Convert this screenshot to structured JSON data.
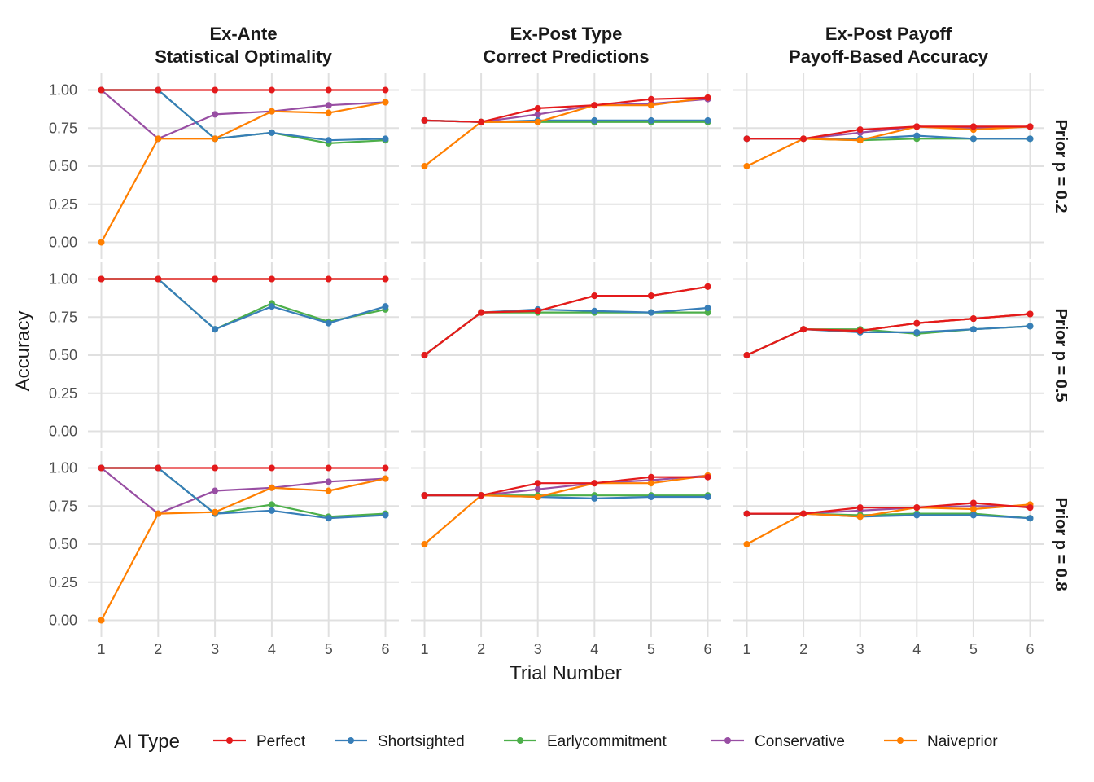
{
  "chart_data": {
    "type": "line",
    "xlabel": "Trial Number",
    "ylabel": "Accuracy",
    "x": [
      1,
      2,
      3,
      4,
      5,
      6
    ],
    "x_ticks": [
      "1",
      "2",
      "3",
      "4",
      "5",
      "6"
    ],
    "y_ticks": [
      "0.00",
      "0.25",
      "0.50",
      "0.75",
      "1.00"
    ],
    "ylim": [
      0,
      1
    ],
    "grid": true,
    "legend": {
      "title": "AI Type",
      "position": "bottom",
      "entries": [
        "Perfect",
        "Shortsighted",
        "Earlycommitment",
        "Conservative",
        "Naiveprior"
      ]
    },
    "colors": {
      "Perfect": "#e41a1c",
      "Shortsighted": "#377eb8",
      "Earlycommitment": "#4daf4a",
      "Conservative": "#984ea3",
      "Naiveprior": "#ff7f00"
    },
    "columns": [
      [
        "Ex-Ante",
        "Statistical Optimality"
      ],
      [
        "Ex-Post Type",
        "Correct Predictions"
      ],
      [
        "Ex-Post Payoff",
        "Payoff-Based Accuracy"
      ]
    ],
    "rows": [
      "Prior p = 0.2",
      "Prior p = 0.5",
      "Prior p = 0.8"
    ],
    "panels": [
      [
        {
          "Perfect": [
            1,
            1,
            1,
            1,
            1,
            1
          ],
          "Shortsighted": [
            1,
            1,
            0.68,
            0.72,
            0.67,
            0.68
          ],
          "Earlycommitment": [
            1,
            1,
            0.68,
            0.72,
            0.65,
            0.67
          ],
          "Conservative": [
            1,
            0.68,
            0.84,
            0.86,
            0.9,
            0.92
          ],
          "Naiveprior": [
            0,
            0.68,
            0.68,
            0.86,
            0.85,
            0.92
          ]
        },
        {
          "Perfect": [
            0.8,
            0.79,
            0.88,
            0.9,
            0.94,
            0.95
          ],
          "Shortsighted": [
            0.8,
            0.79,
            0.8,
            0.8,
            0.8,
            0.8
          ],
          "Earlycommitment": [
            0.8,
            0.79,
            0.79,
            0.79,
            0.79,
            0.79
          ],
          "Conservative": [
            0.8,
            0.79,
            0.84,
            0.9,
            0.91,
            0.94
          ],
          "Naiveprior": [
            0.5,
            0.79,
            0.79,
            0.9,
            0.9,
            0.95
          ]
        },
        {
          "Perfect": [
            0.68,
            0.68,
            0.74,
            0.76,
            0.76,
            0.76
          ],
          "Shortsighted": [
            0.68,
            0.68,
            0.68,
            0.7,
            0.68,
            0.68
          ],
          "Earlycommitment": [
            0.68,
            0.68,
            0.67,
            0.68,
            0.68,
            0.68
          ],
          "Conservative": [
            0.68,
            0.68,
            0.72,
            0.76,
            0.75,
            0.76
          ],
          "Naiveprior": [
            0.5,
            0.68,
            0.67,
            0.76,
            0.74,
            0.76
          ]
        }
      ],
      [
        {
          "Perfect": [
            1,
            1,
            1,
            1,
            1,
            1
          ],
          "Shortsighted": [
            1,
            1,
            0.67,
            0.82,
            0.71,
            0.82
          ],
          "Earlycommitment": [
            1,
            1,
            0.67,
            0.84,
            0.72,
            0.8
          ],
          "Conservative": [
            1,
            1,
            1,
            1,
            1,
            1
          ],
          "Naiveprior": [
            1,
            1,
            1,
            1,
            1,
            1
          ]
        },
        {
          "Perfect": [
            0.5,
            0.78,
            0.79,
            0.89,
            0.89,
            0.95
          ],
          "Shortsighted": [
            0.5,
            0.78,
            0.8,
            0.79,
            0.78,
            0.81
          ],
          "Earlycommitment": [
            0.5,
            0.78,
            0.78,
            0.78,
            0.78,
            0.78
          ],
          "Conservative": [
            0.5,
            0.78,
            0.79,
            0.89,
            0.89,
            0.95
          ],
          "Naiveprior": [
            0.5,
            0.78,
            0.79,
            0.89,
            0.89,
            0.95
          ]
        },
        {
          "Perfect": [
            0.5,
            0.67,
            0.66,
            0.71,
            0.74,
            0.77
          ],
          "Shortsighted": [
            0.5,
            0.67,
            0.65,
            0.65,
            0.67,
            0.69
          ],
          "Earlycommitment": [
            0.5,
            0.67,
            0.67,
            0.64,
            0.67,
            0.69
          ],
          "Conservative": [
            0.5,
            0.67,
            0.66,
            0.71,
            0.74,
            0.77
          ],
          "Naiveprior": [
            0.5,
            0.67,
            0.66,
            0.71,
            0.74,
            0.77
          ]
        }
      ],
      [
        {
          "Perfect": [
            1,
            1,
            1,
            1,
            1,
            1
          ],
          "Shortsighted": [
            1,
            1,
            0.7,
            0.72,
            0.67,
            0.69
          ],
          "Earlycommitment": [
            1,
            1,
            0.7,
            0.76,
            0.68,
            0.7
          ],
          "Conservative": [
            1,
            0.7,
            0.85,
            0.87,
            0.91,
            0.93
          ],
          "Naiveprior": [
            0,
            0.7,
            0.71,
            0.87,
            0.85,
            0.93
          ]
        },
        {
          "Perfect": [
            0.82,
            0.82,
            0.9,
            0.9,
            0.94,
            0.94
          ],
          "Shortsighted": [
            0.82,
            0.82,
            0.81,
            0.8,
            0.81,
            0.81
          ],
          "Earlycommitment": [
            0.82,
            0.82,
            0.82,
            0.82,
            0.82,
            0.82
          ],
          "Conservative": [
            0.82,
            0.82,
            0.86,
            0.9,
            0.92,
            0.95
          ],
          "Naiveprior": [
            0.5,
            0.82,
            0.81,
            0.9,
            0.9,
            0.95
          ]
        },
        {
          "Perfect": [
            0.7,
            0.7,
            0.74,
            0.74,
            0.77,
            0.74
          ],
          "Shortsighted": [
            0.7,
            0.7,
            0.68,
            0.69,
            0.69,
            0.67
          ],
          "Earlycommitment": [
            0.7,
            0.7,
            0.69,
            0.7,
            0.7,
            0.67
          ],
          "Conservative": [
            0.7,
            0.7,
            0.72,
            0.74,
            0.75,
            0.75
          ],
          "Naiveprior": [
            0.5,
            0.7,
            0.68,
            0.74,
            0.73,
            0.76
          ]
        }
      ]
    ]
  }
}
